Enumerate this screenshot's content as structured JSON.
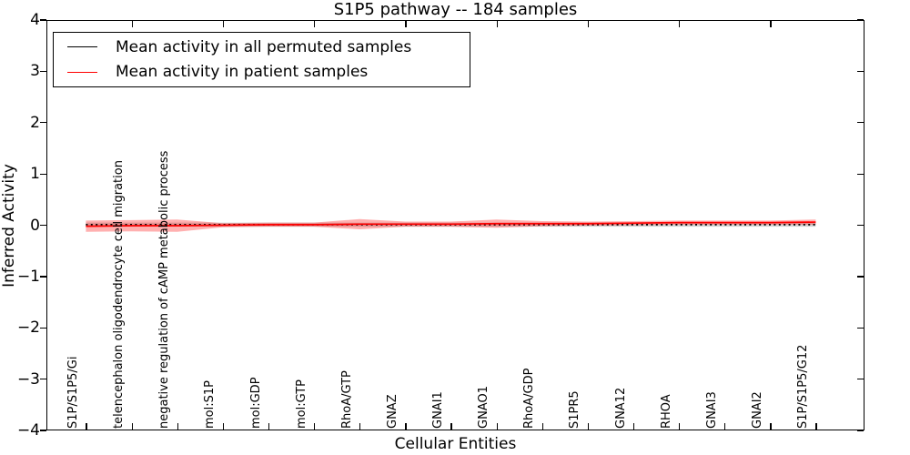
{
  "chart_data": {
    "type": "line",
    "title": "S1P5 pathway -- 184 samples",
    "xlabel": "Cellular Entities",
    "ylabel": "Inferred Activity",
    "ylim": [
      -4,
      4
    ],
    "yticks": [
      4,
      3,
      2,
      1,
      0,
      -1,
      -2,
      -3,
      -4
    ],
    "grid": false,
    "legend_position": "upper left",
    "categories": [
      "S1P/S1P5/Gi",
      "telencephalon oligodendrocyte cell migration",
      "negative regulation of cAMP metabolic process",
      "mol:S1P",
      "mol:GDP",
      "mol:GTP",
      "RhoA/GTP",
      "GNAZ",
      "GNAI1",
      "GNAO1",
      "RhoA/GDP",
      "S1PR5",
      "GNA12",
      "RHOA",
      "GNAI3",
      "GNAI2",
      "S1P/S1P5/G12"
    ],
    "series": [
      {
        "name": "Mean activity in all permuted samples",
        "color": "#000000",
        "line_style": "dotted",
        "values": [
          0,
          0,
          0,
          0,
          0,
          0,
          0,
          0,
          0,
          0,
          0,
          0,
          0,
          0,
          0,
          0,
          0
        ],
        "band_halfwidth": [
          0.04,
          0.04,
          0.04,
          0.04,
          0.04,
          0.04,
          0.04,
          0.04,
          0.04,
          0.04,
          0.04,
          0.04,
          0.04,
          0.04,
          0.04,
          0.04,
          0.04
        ],
        "band_color": "rgba(110,110,110,0.30)"
      },
      {
        "name": "Mean activity in patient samples",
        "color": "#ff0000",
        "line_style": "solid",
        "values": [
          -0.03,
          -0.02,
          -0.02,
          -0.01,
          0,
          0,
          0.01,
          0.01,
          0.01,
          0.02,
          0.02,
          0.02,
          0.03,
          0.04,
          0.04,
          0.04,
          0.05
        ],
        "band_halfwidth": [
          0.11,
          0.11,
          0.12,
          0.04,
          0.04,
          0.04,
          0.1,
          0.05,
          0.05,
          0.08,
          0.05,
          0.04,
          0.04,
          0.04,
          0.04,
          0.04,
          0.05
        ],
        "band_color": "rgba(255,30,30,0.35)"
      }
    ]
  }
}
